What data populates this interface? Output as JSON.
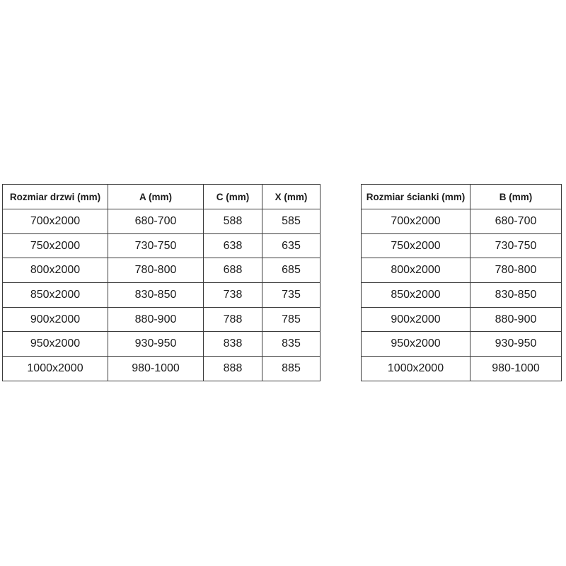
{
  "colors": {
    "background": "#ffffff",
    "border": "#3b3b3b",
    "text": "#1b1b1b"
  },
  "tables": {
    "doors": {
      "headers": [
        "Rozmiar drzwi (mm)",
        "A (mm)",
        "C (mm)",
        "X (mm)"
      ],
      "rows": [
        [
          "700x2000",
          "680-700",
          "588",
          "585"
        ],
        [
          "750x2000",
          "730-750",
          "638",
          "635"
        ],
        [
          "800x2000",
          "780-800",
          "688",
          "685"
        ],
        [
          "850x2000",
          "830-850",
          "738",
          "735"
        ],
        [
          "900x2000",
          "880-900",
          "788",
          "785"
        ],
        [
          "950x2000",
          "930-950",
          "838",
          "835"
        ],
        [
          "1000x2000",
          "980-1000",
          "888",
          "885"
        ]
      ]
    },
    "wall": {
      "headers": [
        "Rozmiar ścianki (mm)",
        "B (mm)"
      ],
      "rows": [
        [
          "700x2000",
          "680-700"
        ],
        [
          "750x2000",
          "730-750"
        ],
        [
          "800x2000",
          "780-800"
        ],
        [
          "850x2000",
          "830-850"
        ],
        [
          "900x2000",
          "880-900"
        ],
        [
          "950x2000",
          "930-950"
        ],
        [
          "1000x2000",
          "980-1000"
        ]
      ]
    }
  }
}
